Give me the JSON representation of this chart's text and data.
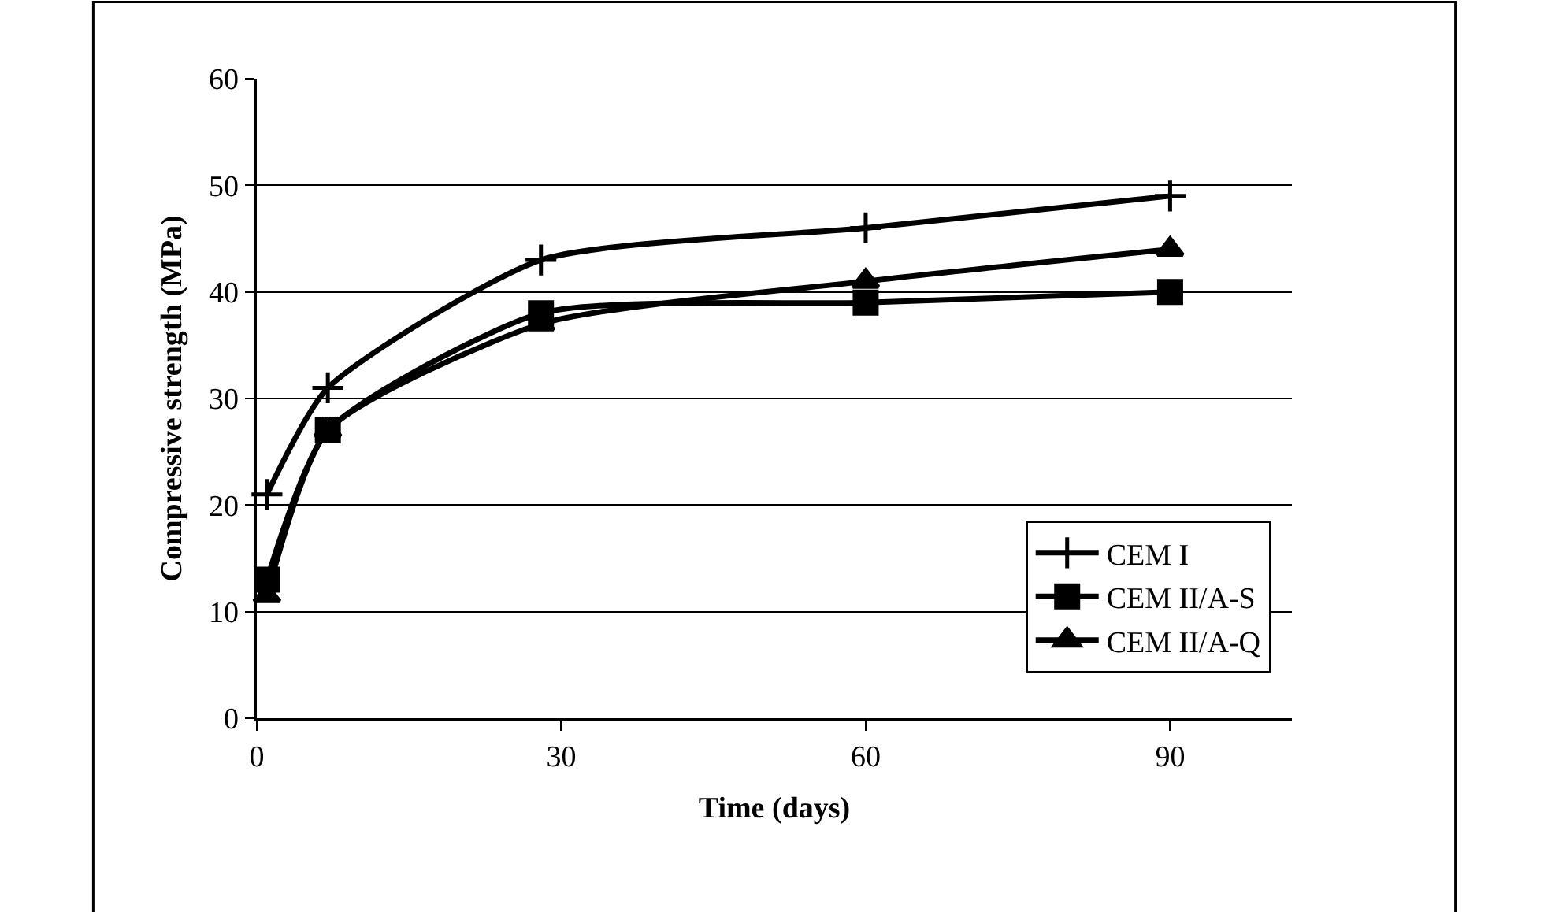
{
  "chart_data": {
    "type": "line",
    "xlabel": "Time (days)",
    "ylabel": "Compressive strength (MPa)",
    "x": [
      1,
      7,
      28,
      60,
      90
    ],
    "series": [
      {
        "name": "CEM I",
        "color": "#000000",
        "marker": "cross",
        "values": [
          21,
          31,
          43,
          46,
          49
        ]
      },
      {
        "name": "CEM II/A-S",
        "color": "#000000",
        "marker": "square",
        "values": [
          13,
          27,
          38,
          39,
          40
        ]
      },
      {
        "name": "CEM II/A-Q",
        "color": "#000000",
        "marker": "triangle",
        "values": [
          11.5,
          27,
          37,
          41,
          44
        ]
      }
    ],
    "xlim": [
      0,
      102
    ],
    "xticks": [
      0,
      30,
      60,
      90
    ],
    "ylim": [
      0,
      60
    ],
    "yticks": [
      0,
      10,
      20,
      30,
      40,
      50,
      60
    ],
    "grid": "y",
    "legend": "bottom right",
    "line_style": "solid"
  }
}
